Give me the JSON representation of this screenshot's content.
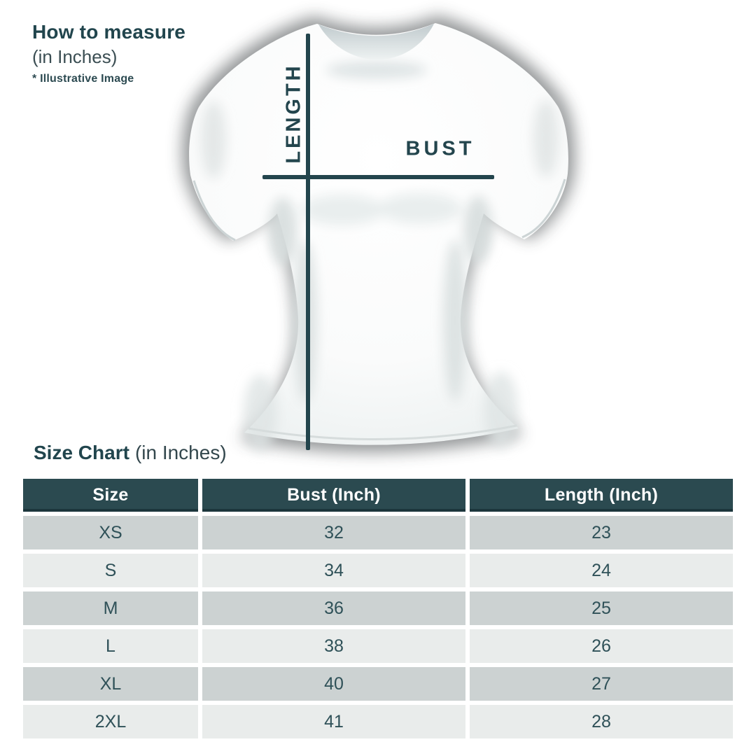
{
  "colors": {
    "accent": "#23454d",
    "title": "#21454d",
    "header_bg": "#2b4a50",
    "row_dark": "#ccd2d2",
    "row_light": "#e9eceb",
    "cell_text": "#2f5158"
  },
  "how_to_measure": {
    "title": "How to measure",
    "subtitle": "(in Inches)",
    "note": "* Illustrative Image"
  },
  "diagram": {
    "length_label": "LENGTH",
    "bust_label": "BUST"
  },
  "size_chart_heading": {
    "title": "Size Chart",
    "subtitle": "(in Inches)"
  },
  "chart_data": {
    "type": "table",
    "title": "Size Chart (in Inches)",
    "columns": [
      "Size",
      "Bust (Inch)",
      "Length (Inch)"
    ],
    "rows": [
      [
        "XS",
        "32",
        "23"
      ],
      [
        "S",
        "34",
        "24"
      ],
      [
        "M",
        "36",
        "25"
      ],
      [
        "L",
        "38",
        "26"
      ],
      [
        "XL",
        "40",
        "27"
      ],
      [
        "2XL",
        "41",
        "28"
      ]
    ]
  }
}
